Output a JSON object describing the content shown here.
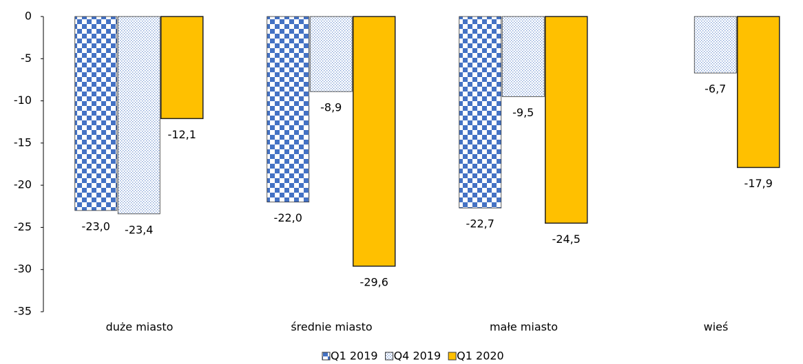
{
  "chart_data": {
    "type": "bar",
    "categories": [
      "duże miasto",
      "średnie miasto",
      "małe miasto",
      "wieś"
    ],
    "series": [
      {
        "name": "Q1 2019",
        "color": "#4472c4",
        "values": [
          -23.0,
          -22.0,
          -22.7,
          null
        ],
        "value_labels": [
          "-23,0",
          "-22,0",
          "-22,7",
          null
        ]
      },
      {
        "name": "Q4 2019",
        "color": "#4472c4",
        "values": [
          -23.4,
          -8.9,
          -9.5,
          -6.7
        ],
        "value_labels": [
          "-23,4",
          "-8,9",
          "-9,5",
          "-6,7"
        ]
      },
      {
        "name": "Q1 2020",
        "color": "#ffc000",
        "values": [
          -12.1,
          -29.6,
          -24.5,
          -17.9
        ],
        "value_labels": [
          "-12,1",
          "-29,6",
          "-24,5",
          "-17,9"
        ]
      }
    ],
    "ylim": [
      -35,
      0
    ],
    "yticks": [
      0,
      -5,
      -10,
      -15,
      -20,
      -25,
      -30,
      -35
    ],
    "grid": false,
    "legend": "bottom"
  }
}
